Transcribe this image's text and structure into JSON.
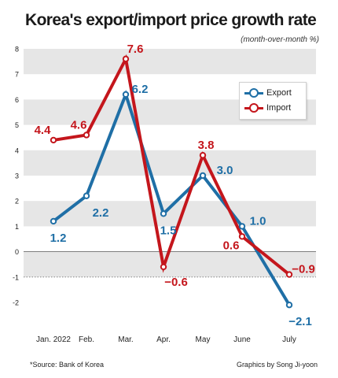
{
  "title": "Korea's export/import price growth rate",
  "subtitle": "(month-over-month %)",
  "footer": {
    "source": "*Source: Bank of Korea",
    "credit": "Graphics by Song Ji-yoon"
  },
  "colors": {
    "export": "#1f6fa6",
    "import": "#c4161c",
    "band": "#e6e6e6",
    "zero_line": "#555555"
  },
  "chart_data": {
    "type": "line",
    "categories": [
      "Jan. 2022",
      "Feb.",
      "Mar.",
      "Apr.",
      "May",
      "June",
      "July"
    ],
    "series": [
      {
        "name": "Export",
        "values": [
          1.2,
          2.2,
          6.2,
          1.5,
          3.0,
          1.0,
          -2.1
        ],
        "labels": [
          "1.2",
          "2.2",
          "6.2",
          "1.5",
          "3.0",
          "1.0",
          "−2.1"
        ]
      },
      {
        "name": "Import",
        "values": [
          4.4,
          4.6,
          7.6,
          -0.6,
          3.8,
          0.6,
          -0.9
        ],
        "labels": [
          "4.4",
          "4.6",
          "7.6",
          "−0.6",
          "3.8",
          "0.6",
          "−0.9"
        ]
      }
    ],
    "y_ticks": [
      "-2",
      "-1",
      "0",
      "1",
      "2",
      "3",
      "4",
      "5",
      "6",
      "7",
      "8"
    ],
    "ylim": [
      -2,
      8
    ],
    "grid": "alternating horizontal bands",
    "legend_position": "top-right"
  }
}
